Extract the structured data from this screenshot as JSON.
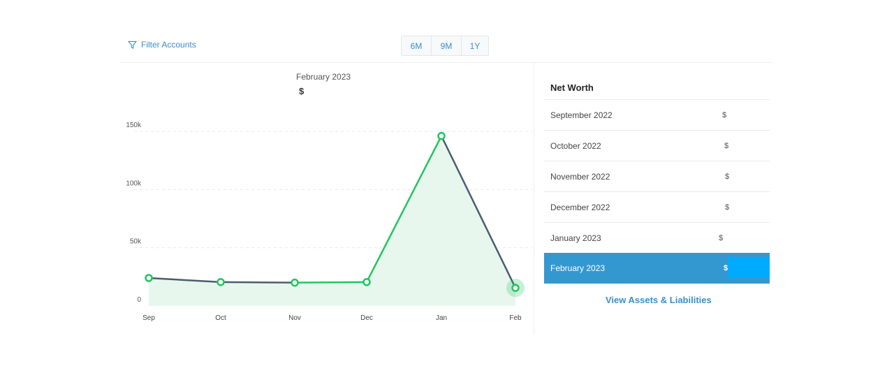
{
  "filter": {
    "label": "Filter Accounts",
    "icon": "filter-icon"
  },
  "ranges": [
    {
      "label": "6M"
    },
    {
      "label": "9M"
    },
    {
      "label": "1Y"
    }
  ],
  "chart_header": {
    "month": "February 2023",
    "amount": "$"
  },
  "chart_data": {
    "type": "line",
    "categories": [
      "Sep",
      "Oct",
      "Nov",
      "Dec",
      "Jan",
      "Feb"
    ],
    "series": [
      {
        "values": [
          24000,
          20500,
          20000,
          20500,
          146000,
          15500
        ]
      }
    ],
    "ylim": [
      0,
      150000
    ],
    "yticks": [
      0,
      50000,
      100000,
      150000
    ],
    "ytick_labels": [
      "0",
      "50k",
      "100k",
      "150k"
    ],
    "grid": true,
    "colors": {
      "increase": "#22c55e",
      "decrease": "#4b5d6e",
      "fill": "#e8f7ee",
      "marker": "#22c55e"
    }
  },
  "net_worth": {
    "title": "Net Worth",
    "rows": [
      {
        "month": "September 2022",
        "value": "$"
      },
      {
        "month": "October 2022",
        "value": "$"
      },
      {
        "month": "November 2022",
        "value": "$"
      },
      {
        "month": "December 2022",
        "value": "$"
      },
      {
        "month": "January 2023",
        "value": "$"
      },
      {
        "month": "February 2023",
        "value": "$"
      }
    ],
    "selected_index": 5,
    "selected_color": "#3498d0"
  },
  "view_link": "View Assets & Liabilities"
}
